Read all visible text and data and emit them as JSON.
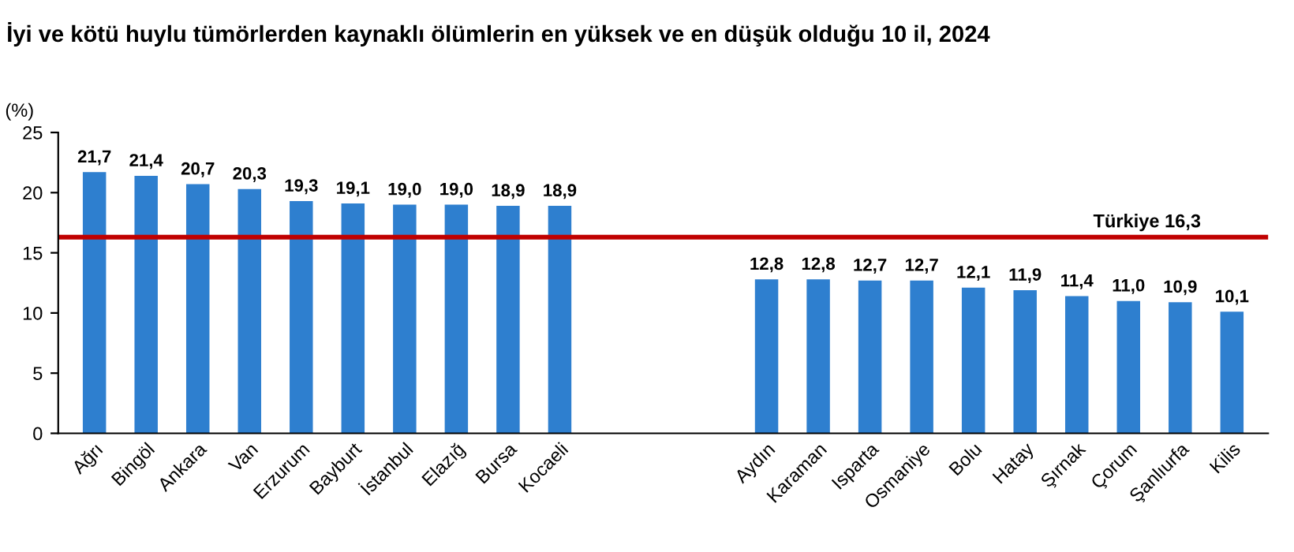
{
  "chart_data": {
    "type": "bar",
    "title": "İyi ve kötü huylu tümörlerden kaynaklı ölümlerin en yüksek ve en düşük olduğu 10 il, 2024",
    "ylabel": "(%)",
    "categories": [
      "Ağrı",
      "Bingöl",
      "Ankara",
      "Van",
      "Erzurum",
      "Bayburt",
      "İstanbul",
      "Elazığ",
      "Bursa",
      "Kocaeli",
      null,
      null,
      null,
      "Aydın",
      "Karaman",
      "Isparta",
      "Osmaniye",
      "Bolu",
      "Hatay",
      "Şırnak",
      "Çorum",
      "Şanlıurfa",
      "Kilis"
    ],
    "values": [
      21.7,
      21.4,
      20.7,
      20.3,
      19.3,
      19.1,
      19.0,
      19.0,
      18.9,
      18.9,
      null,
      null,
      null,
      12.8,
      12.8,
      12.7,
      12.7,
      12.1,
      11.9,
      11.4,
      11.0,
      10.9,
      10.1
    ],
    "value_labels": [
      "21,7",
      "21,4",
      "20,7",
      "20,3",
      "19,3",
      "19,1",
      "19,0",
      "19,0",
      "18,9",
      "18,9",
      null,
      null,
      null,
      "12,8",
      "12,8",
      "12,7",
      "12,7",
      "12,1",
      "11,9",
      "11,4",
      "11,0",
      "10,9",
      "10,1"
    ],
    "color": "#2e7fcf",
    "ylim": [
      0,
      25
    ],
    "yticks": [
      0,
      5,
      10,
      15,
      20,
      25
    ],
    "grid": false,
    "legend": false,
    "ref_lines": [
      {
        "axis": "y",
        "value": 16.3,
        "label": "Türkiye 16,3",
        "color": "#c00000",
        "line_style": "solid"
      }
    ]
  }
}
